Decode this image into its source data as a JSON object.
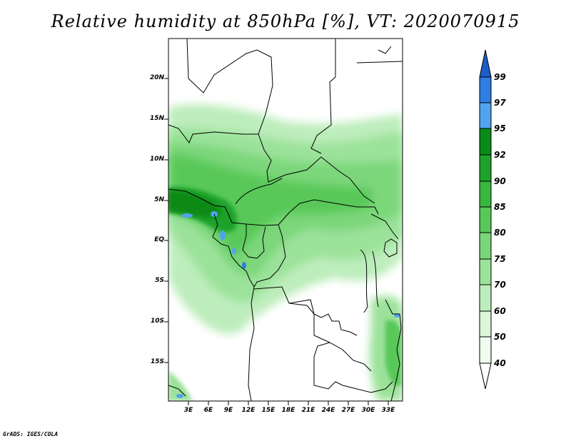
{
  "title": "Relative humidity at 850hPa [%], VT: 2020070915",
  "map": {
    "lat_labels": [
      "20N",
      "15N",
      "10N",
      "5N",
      "EQ",
      "5S",
      "10S",
      "15S"
    ],
    "lon_labels": [
      "3E",
      "6E",
      "9E",
      "12E",
      "15E",
      "18E",
      "21E",
      "24E",
      "27E",
      "30E",
      "33E"
    ]
  },
  "colorbar": {
    "levels": [
      "99",
      "97",
      "95",
      "92",
      "90",
      "85",
      "80",
      "75",
      "70",
      "60",
      "50",
      "40"
    ],
    "colors": [
      "#1b5ec9",
      "#2e7fe0",
      "#52a3ee",
      "#0a8a19",
      "#1ea22b",
      "#39b83f",
      "#58c858",
      "#7bd67a",
      "#9be29a",
      "#bdedbc",
      "#dcf6dc",
      "#f0fbf0",
      "#ffffff"
    ]
  },
  "credit": "GrADS: IGES/COLA"
}
